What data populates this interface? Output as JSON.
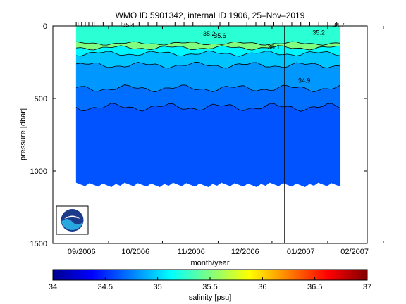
{
  "chart_data": {
    "type": "heatmap",
    "title": "WMO ID 5901342, internal ID 1906, 25–Nov–2019",
    "xlabel": "month/year",
    "ylabel": "pressure [dbar]",
    "x_ticks": [
      "09/2006",
      "10/2006",
      "11/2006",
      "12/2006",
      "01/2007",
      "02/2007"
    ],
    "y_ticks": [
      "0",
      "500",
      "1000",
      "1500"
    ],
    "ylim": [
      1500,
      0
    ],
    "colorbar": {
      "label": "salinity [psu]",
      "range": [
        34,
        37
      ],
      "ticks": [
        "34",
        "34.5",
        "35",
        "35.5",
        "36",
        "36.5",
        "37"
      ],
      "colormap": "jet"
    },
    "contour_labels": [
      "35.4",
      "35.2",
      "35.6",
      "35.1",
      "34.9",
      "34.7",
      "35.2"
    ],
    "layers": [
      {
        "salinity": 35.25,
        "top_depth": 0,
        "bottom_depth": 120
      },
      {
        "salinity": 35.5,
        "top_depth": 120,
        "bottom_depth": 150
      },
      {
        "salinity": 35.1,
        "top_depth": 150,
        "bottom_depth": 190
      },
      {
        "salinity": 34.95,
        "top_depth": 190,
        "bottom_depth": 270
      },
      {
        "salinity": 34.82,
        "top_depth": 270,
        "bottom_depth": 430
      },
      {
        "salinity": 34.7,
        "top_depth": 430,
        "bottom_depth": 560
      },
      {
        "salinity": 34.62,
        "top_depth": 560,
        "bottom_depth": 1150
      }
    ],
    "data_extent_days": [
      13,
      160
    ],
    "max_depth": 1150,
    "marked_date_line_day": 129,
    "logo": "noaa-logo"
  }
}
